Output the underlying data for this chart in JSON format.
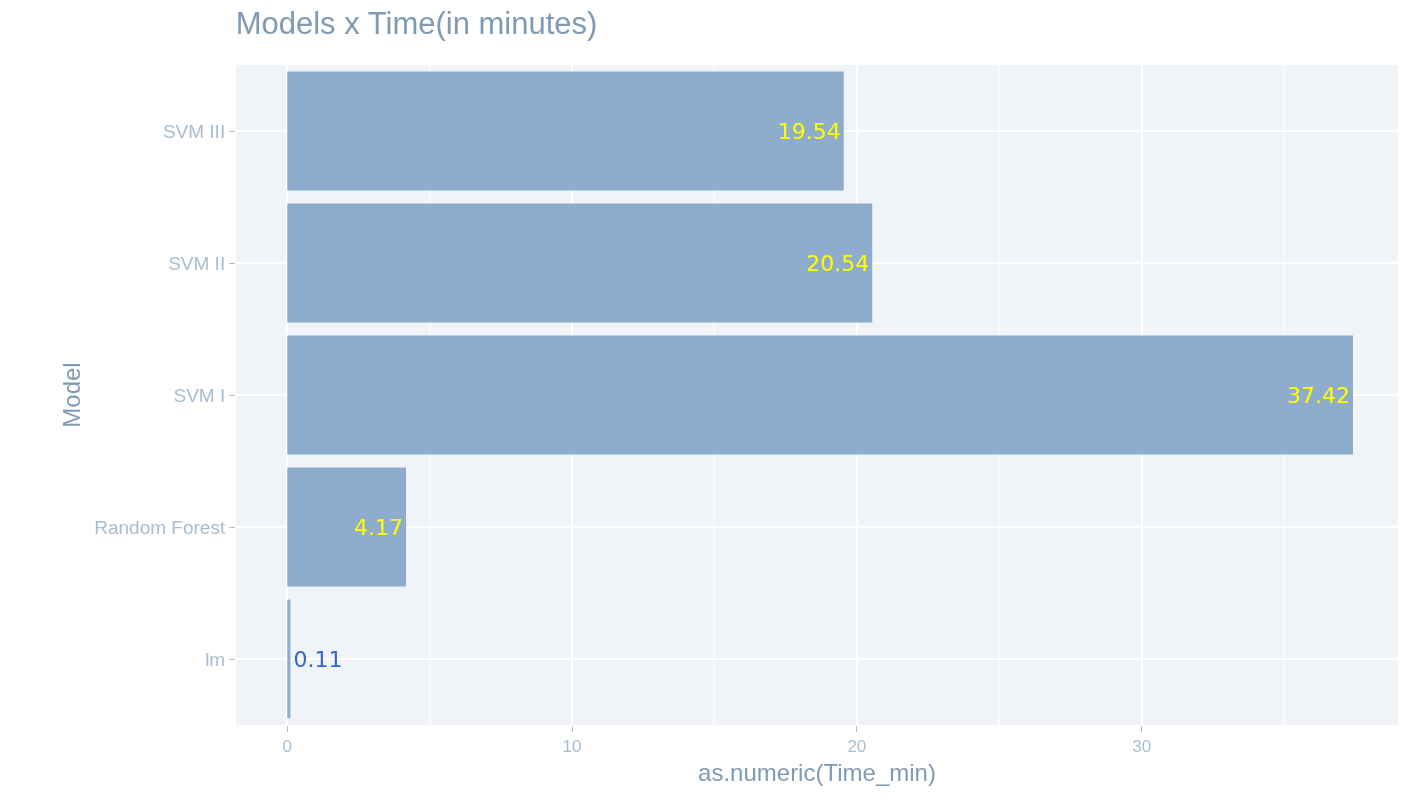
{
  "chart_data": {
    "type": "bar",
    "orientation": "horizontal",
    "title": "Models x Time(in minutes)",
    "xlabel": "as.numeric(Time_min)",
    "ylabel": "Model",
    "categories": [
      "SVM III",
      "SVM II",
      "SVM I",
      "Random Forest",
      "lm"
    ],
    "values": [
      19.54,
      20.54,
      37.42,
      4.17,
      0.11
    ],
    "color": "#8eaccc",
    "data_labels": true,
    "xlim": [
      -1.8,
      39
    ],
    "xticks": [
      0,
      10,
      20,
      30
    ],
    "grid": true
  }
}
